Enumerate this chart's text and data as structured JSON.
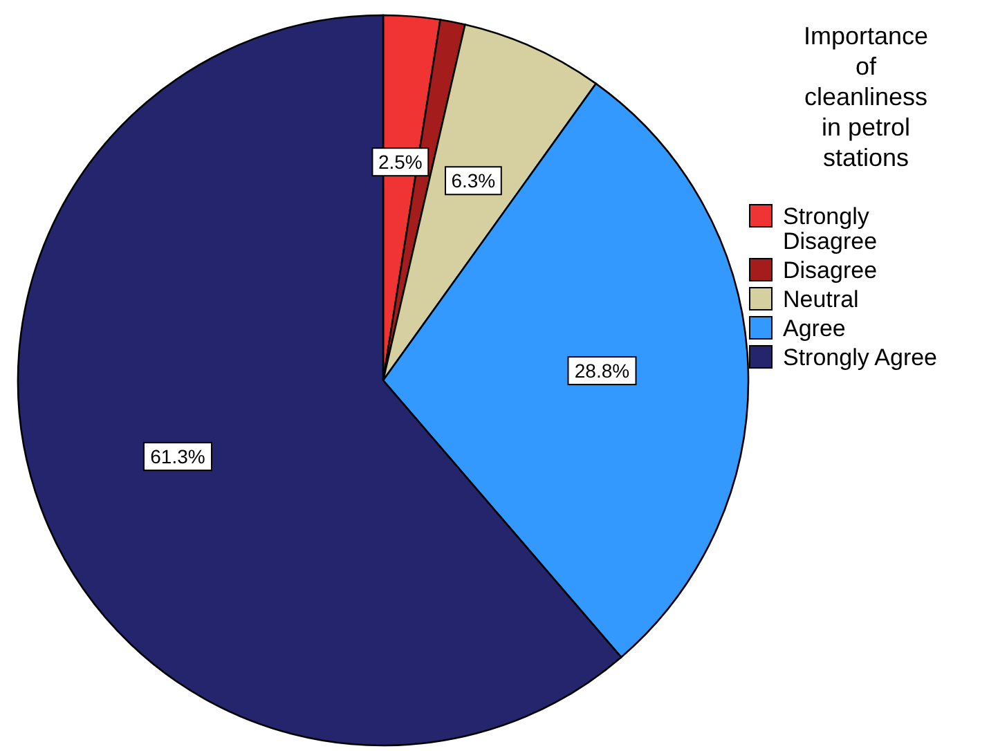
{
  "chart_data": {
    "type": "pie",
    "legend_title": "Importance of cleanliness in petrol stations",
    "categories": [
      "Strongly Disagree",
      "Disagree",
      "Neutral",
      "Agree",
      "Strongly Agree"
    ],
    "values": [
      2.5,
      1.1,
      6.3,
      28.8,
      61.3
    ],
    "colors": [
      "#f03434",
      "#a51c1c",
      "#d6d0a0",
      "#3399ff",
      "#25256e"
    ],
    "value_labels": [
      "2.5%",
      null,
      "6.3%",
      "28.8%",
      "61.3%"
    ],
    "legend": "right"
  }
}
